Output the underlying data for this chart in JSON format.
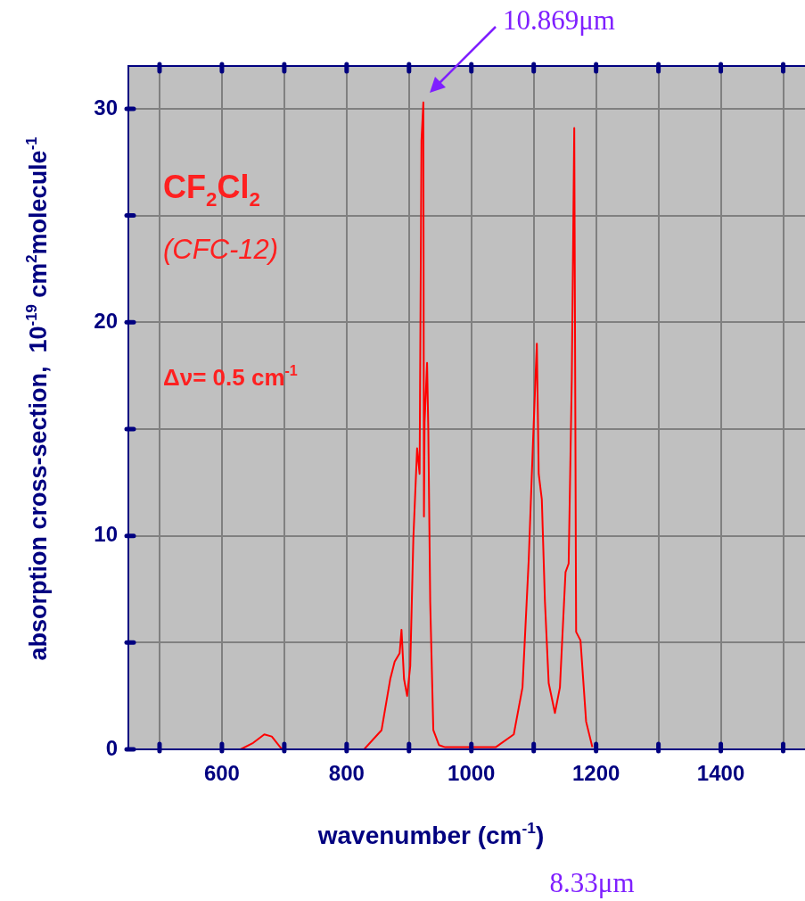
{
  "chart_data": {
    "type": "line",
    "xlabel": "wavenumber (cm$^{-1}$)",
    "ylabel": "absorption cross-section,  10$^{-19}$ cm$^{2}$molecule$^{-1}$",
    "xlim": [
      450,
      1535
    ],
    "ylim": [
      0,
      32
    ],
    "xticks": [
      {
        "value": 500,
        "label": null
      },
      600,
      {
        "value": 700,
        "label": null
      },
      800,
      {
        "value": 900,
        "label": null
      },
      1000,
      {
        "value": 1100,
        "label": null
      },
      1200,
      {
        "value": 1300,
        "label": null
      },
      1400,
      {
        "value": 1500,
        "label": null
      }
    ],
    "yticks": [
      0,
      {
        "value": 5,
        "label": null
      },
      10,
      {
        "value": 15,
        "label": null
      },
      20,
      {
        "value": 25,
        "label": null
      },
      30
    ],
    "grid": true,
    "marker": "none",
    "line_style": "solid",
    "series": [
      {
        "color": "#ff0000",
        "x": [
          630,
          650,
          668,
          680,
          695,
          700,
          828,
          856,
          870,
          877,
          885,
          888,
          892,
          897,
          902,
          907,
          913,
          917,
          920,
          923,
          924,
          925,
          929,
          931,
          934,
          939,
          948,
          958,
          1039,
          1068,
          1082,
          1092,
          1099,
          1105,
          1108,
          1113,
          1118,
          1124,
          1134,
          1142,
          1151,
          1156,
          1161,
          1165,
          1168,
          1175,
          1184,
          1194
        ],
        "values": [
          0,
          0.3,
          0.7,
          0.6,
          0.05,
          0,
          0,
          0.9,
          3.3,
          4.1,
          4.5,
          5.6,
          3.3,
          2.5,
          3.9,
          9.9,
          14.1,
          12.9,
          28.5,
          30.3,
          10.9,
          15.3,
          18.1,
          14.9,
          6.9,
          0.9,
          0.2,
          0.1,
          0.1,
          0.7,
          2.9,
          8.9,
          14.5,
          19.0,
          12.9,
          11.7,
          6.9,
          3.1,
          1.7,
          2.9,
          8.3,
          8.7,
          17.3,
          29.1,
          5.5,
          5.1,
          1.3,
          0.1
        ]
      }
    ],
    "annotations": [
      "10.869μm",
      "CF$_{2}$Cl$_{2}$",
      "(CFC-12)",
      "Δν= 0.5 cm$^{-1}$",
      "8.33μm"
    ]
  }
}
